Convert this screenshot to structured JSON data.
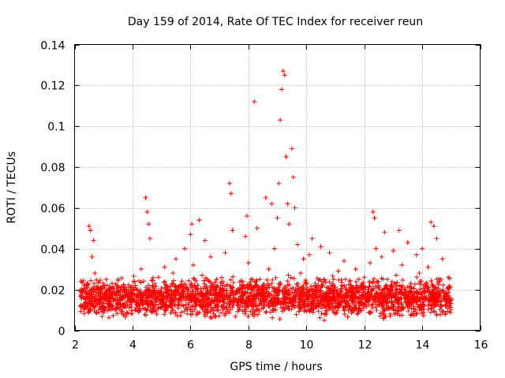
{
  "chart_data": {
    "type": "scatter",
    "title": "Day 159 of 2014, Rate Of TEC Index for receiver reun",
    "xlabel": "GPS time / hours",
    "ylabel": "ROTI / TECUs",
    "xlim": [
      2,
      16
    ],
    "ylim": [
      0,
      0.14
    ],
    "x_ticks": [
      2,
      4,
      6,
      8,
      10,
      12,
      14,
      16
    ],
    "x_tick_labels": [
      "2",
      "4",
      "6",
      "8",
      "10",
      "12",
      "14",
      "16"
    ],
    "y_ticks": [
      0,
      0.02,
      0.04,
      0.06,
      0.08,
      0.1,
      0.12,
      0.14
    ],
    "y_tick_labels": [
      "0",
      "0.02",
      "0.04",
      "0.06",
      "0.08",
      "0.1",
      "0.12",
      "0.14"
    ],
    "grid": true,
    "marker": "+",
    "color": "#ff0000",
    "series": [
      {
        "name": "ROTI",
        "points": [
          [
            2.2,
            0.012
          ],
          [
            2.3,
            0.016
          ],
          [
            2.4,
            0.022
          ],
          [
            2.5,
            0.051
          ],
          [
            2.55,
            0.049
          ],
          [
            2.6,
            0.036
          ],
          [
            2.65,
            0.044
          ],
          [
            2.7,
            0.028
          ],
          [
            2.8,
            0.013
          ],
          [
            2.9,
            0.018
          ],
          [
            3.0,
            0.011
          ],
          [
            3.1,
            0.019
          ],
          [
            3.2,
            0.014
          ],
          [
            3.3,
            0.021
          ],
          [
            3.4,
            0.01
          ],
          [
            3.5,
            0.025
          ],
          [
            3.6,
            0.016
          ],
          [
            3.7,
            0.012
          ],
          [
            3.8,
            0.02
          ],
          [
            3.9,
            0.015
          ],
          [
            4.0,
            0.018
          ],
          [
            4.1,
            0.022
          ],
          [
            4.2,
            0.013
          ],
          [
            4.3,
            0.03
          ],
          [
            4.45,
            0.065
          ],
          [
            4.5,
            0.058
          ],
          [
            4.55,
            0.052
          ],
          [
            4.6,
            0.045
          ],
          [
            4.7,
            0.019
          ],
          [
            4.8,
            0.014
          ],
          [
            4.9,
            0.026
          ],
          [
            5.0,
            0.017
          ],
          [
            5.1,
            0.031
          ],
          [
            5.2,
            0.02
          ],
          [
            5.3,
            0.012
          ],
          [
            5.4,
            0.028
          ],
          [
            5.5,
            0.035
          ],
          [
            5.6,
            0.018
          ],
          [
            5.7,
            0.024
          ],
          [
            5.8,
            0.04
          ],
          [
            5.9,
            0.016
          ],
          [
            6.0,
            0.047
          ],
          [
            6.05,
            0.052
          ],
          [
            6.1,
            0.032
          ],
          [
            6.2,
            0.021
          ],
          [
            6.3,
            0.054
          ],
          [
            6.4,
            0.027
          ],
          [
            6.5,
            0.044
          ],
          [
            6.6,
            0.019
          ],
          [
            6.7,
            0.036
          ],
          [
            6.8,
            0.014
          ],
          [
            6.9,
            0.025
          ],
          [
            7.0,
            0.018
          ],
          [
            7.1,
            0.022
          ],
          [
            7.2,
            0.038
          ],
          [
            7.35,
            0.072
          ],
          [
            7.4,
            0.067
          ],
          [
            7.45,
            0.049
          ],
          [
            7.6,
            0.015
          ],
          [
            7.7,
            0.02
          ],
          [
            7.8,
            0.012
          ],
          [
            7.9,
            0.046
          ],
          [
            7.95,
            0.056
          ],
          [
            8.0,
            0.033
          ],
          [
            8.1,
            0.02
          ],
          [
            8.2,
            0.112
          ],
          [
            8.3,
            0.05
          ],
          [
            8.4,
            0.025
          ],
          [
            8.5,
            0.018
          ],
          [
            8.6,
            0.065
          ],
          [
            8.7,
            0.03
          ],
          [
            8.8,
            0.062
          ],
          [
            8.9,
            0.04
          ],
          [
            9.0,
            0.055
          ],
          [
            9.05,
            0.072
          ],
          [
            9.1,
            0.103
          ],
          [
            9.15,
            0.118
          ],
          [
            9.2,
            0.127
          ],
          [
            9.25,
            0.125
          ],
          [
            9.3,
            0.085
          ],
          [
            9.35,
            0.062
          ],
          [
            9.4,
            0.052
          ],
          [
            9.5,
            0.089
          ],
          [
            9.55,
            0.075
          ],
          [
            9.6,
            0.06
          ],
          [
            9.7,
            0.042
          ],
          [
            9.8,
            0.028
          ],
          [
            9.9,
            0.035
          ],
          [
            10.0,
            0.02
          ],
          [
            10.1,
            0.037
          ],
          [
            10.2,
            0.045
          ],
          [
            10.3,
            0.022
          ],
          [
            10.4,
            0.016
          ],
          [
            10.5,
            0.041
          ],
          [
            10.6,
            0.025
          ],
          [
            10.7,
            0.018
          ],
          [
            10.8,
            0.038
          ],
          [
            10.9,
            0.023
          ],
          [
            11.0,
            0.015
          ],
          [
            11.1,
            0.029
          ],
          [
            11.2,
            0.019
          ],
          [
            11.3,
            0.034
          ],
          [
            11.4,
            0.013
          ],
          [
            11.5,
            0.024
          ],
          [
            11.6,
            0.021
          ],
          [
            11.7,
            0.03
          ],
          [
            11.8,
            0.016
          ],
          [
            11.9,
            0.022
          ],
          [
            12.0,
            0.026
          ],
          [
            12.1,
            0.018
          ],
          [
            12.2,
            0.033
          ],
          [
            12.3,
            0.058
          ],
          [
            12.35,
            0.055
          ],
          [
            12.4,
            0.04
          ],
          [
            12.5,
            0.021
          ],
          [
            12.6,
            0.036
          ],
          [
            12.7,
            0.048
          ],
          [
            12.8,
            0.025
          ],
          [
            12.9,
            0.017
          ],
          [
            13.0,
            0.039
          ],
          [
            13.1,
            0.027
          ],
          [
            13.2,
            0.049
          ],
          [
            13.3,
            0.032
          ],
          [
            13.4,
            0.02
          ],
          [
            13.5,
            0.043
          ],
          [
            13.6,
            0.023
          ],
          [
            13.7,
            0.016
          ],
          [
            13.8,
            0.037
          ],
          [
            13.9,
            0.028
          ],
          [
            14.0,
            0.04
          ],
          [
            14.1,
            0.022
          ],
          [
            14.2,
            0.031
          ],
          [
            14.3,
            0.053
          ],
          [
            14.4,
            0.051
          ],
          [
            14.5,
            0.045
          ],
          [
            14.6,
            0.024
          ],
          [
            14.7,
            0.035
          ],
          [
            14.8,
            0.018
          ],
          [
            14.9,
            0.026
          ],
          [
            15.0,
            0.015
          ]
        ]
      }
    ],
    "background_scatter": {
      "x_range": [
        2.2,
        15.0
      ],
      "y_range": [
        0.004,
        0.028
      ],
      "count": 2600,
      "seed": 1597
    }
  }
}
